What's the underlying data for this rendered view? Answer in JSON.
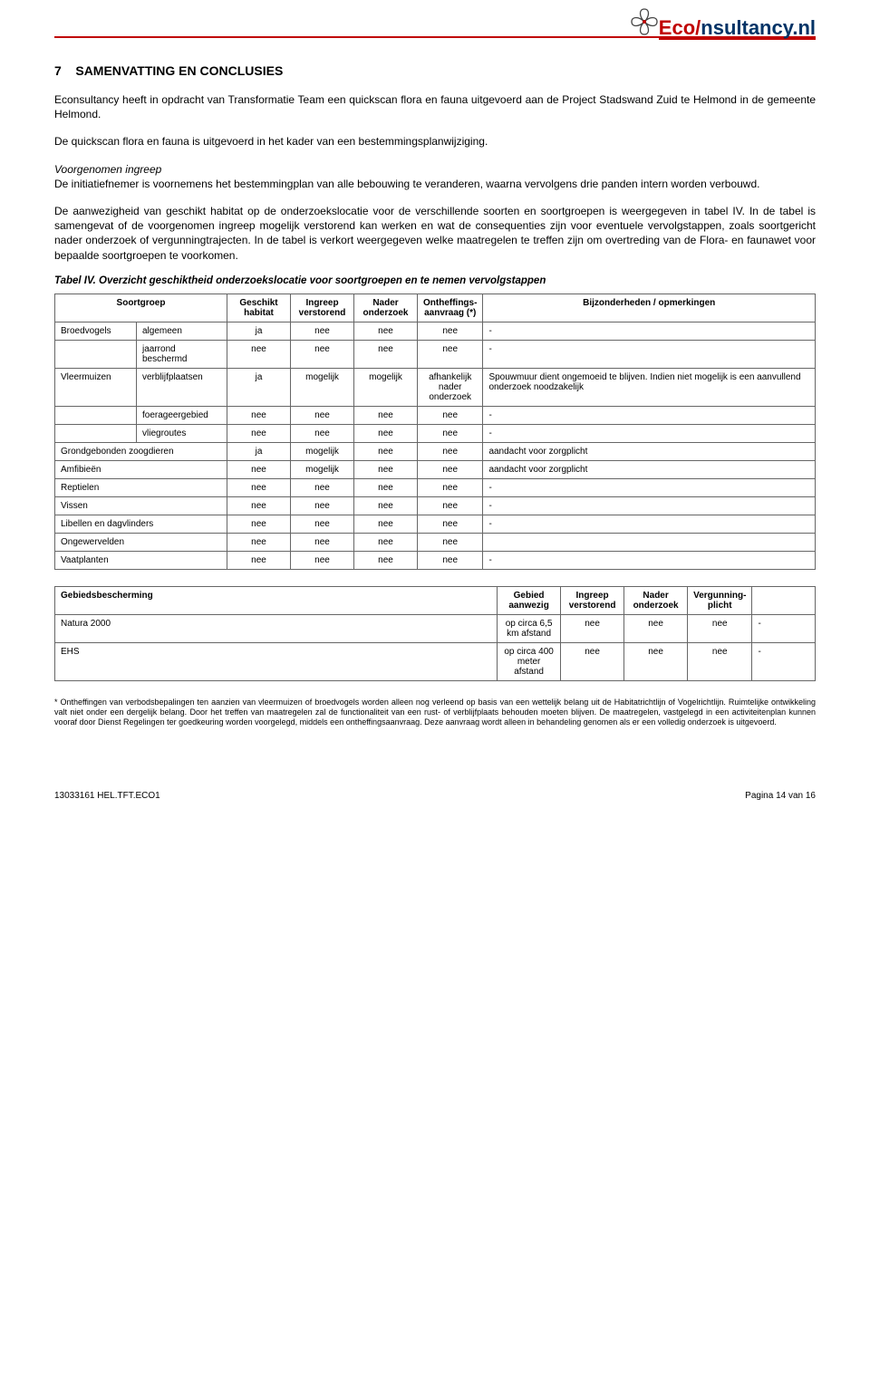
{
  "logo": {
    "prefix": "Ec",
    "mid": "o",
    "slash": "/",
    "suffix": "nsultancy",
    "ext": ".nl"
  },
  "heading": {
    "number": "7",
    "title": "SAMENVATTING EN CONCLUSIES"
  },
  "p1": "Econsultancy heeft in opdracht van Transformatie Team een quickscan flora en fauna uitgevoerd aan de Project Stadswand Zuid te Helmond in de gemeente Helmond.",
  "p2": "De quickscan flora en fauna is uitgevoerd in het kader van een bestemmingsplanwijziging.",
  "p3_heading": "Voorgenomen ingreep",
  "p3_body": "De initiatiefnemer is voornemens het bestemmingplan van alle bebouwing te veranderen, waarna vervolgens drie panden intern worden verbouwd.",
  "p4": "De aanwezigheid van geschikt habitat op de onderzoekslocatie voor de verschillende soorten en soortgroepen is weergegeven in tabel IV. In de tabel is samengevat of de voorgenomen ingreep mogelijk verstorend kan werken en wat de consequenties zijn voor eventuele vervolgstappen, zoals soortgericht nader onderzoek of vergunningtrajecten. In de tabel is verkort weergegeven welke maatregelen te treffen zijn om overtreding van de Flora- en faunawet voor bepaalde soortgroepen te voorkomen.",
  "table_caption": "Tabel IV. Overzicht geschiktheid onderzoekslocatie voor soortgroepen en te nemen vervolgstappen",
  "table1": {
    "headers": [
      "Soortgroep",
      "Geschikt habitat",
      "Ingreep verstorend",
      "Nader onderzoek",
      "Ontheffings-aanvraag (*)",
      "Bijzonderheden / opmerkingen"
    ],
    "rows": [
      {
        "g1": "Broedvogels",
        "g2": "algemeen",
        "c": [
          "ja",
          "nee",
          "nee",
          "nee"
        ],
        "r": "-"
      },
      {
        "g1": "",
        "g2": "jaarrond beschermd",
        "c": [
          "nee",
          "nee",
          "nee",
          "nee"
        ],
        "r": "-"
      },
      {
        "g1": "Vleermuizen",
        "g2": "verblijfplaatsen",
        "c": [
          "ja",
          "mogelijk",
          "mogelijk",
          "afhankelijk nader onderzoek"
        ],
        "r": "Spouwmuur dient ongemoeid te blijven. Indien niet mogelijk is een aanvullend onderzoek noodzakelijk"
      },
      {
        "g1": "",
        "g2": "foerageergebied",
        "c": [
          "nee",
          "nee",
          "nee",
          "nee"
        ],
        "r": "-"
      },
      {
        "g1": "",
        "g2": "vliegroutes",
        "c": [
          "nee",
          "nee",
          "nee",
          "nee"
        ],
        "r": "-"
      },
      {
        "g1": "Grondgebonden zoogdieren",
        "g2": "",
        "merged": true,
        "c": [
          "ja",
          "mogelijk",
          "nee",
          "nee"
        ],
        "r": "aandacht voor zorgplicht"
      },
      {
        "g1": "Amfibieën",
        "g2": "",
        "merged": true,
        "c": [
          "nee",
          "mogelijk",
          "nee",
          "nee"
        ],
        "r": "aandacht voor zorgplicht"
      },
      {
        "g1": "Reptielen",
        "g2": "",
        "merged": true,
        "c": [
          "nee",
          "nee",
          "nee",
          "nee"
        ],
        "r": "-"
      },
      {
        "g1": "Vissen",
        "g2": "",
        "merged": true,
        "c": [
          "nee",
          "nee",
          "nee",
          "nee"
        ],
        "r": "-"
      },
      {
        "g1": "Libellen en dagvlinders",
        "g2": "",
        "merged": true,
        "c": [
          "nee",
          "nee",
          "nee",
          "nee"
        ],
        "r": "-"
      },
      {
        "g1": "Ongewervelden",
        "g2": "",
        "merged": true,
        "c": [
          "nee",
          "nee",
          "nee",
          "nee"
        ],
        "r": ""
      },
      {
        "g1": "Vaatplanten",
        "g2": "",
        "merged": true,
        "c": [
          "nee",
          "nee",
          "nee",
          "nee"
        ],
        "r": "-"
      }
    ]
  },
  "table2": {
    "headers": [
      "Gebiedsbescherming",
      "Gebied aanwezig",
      "Ingreep verstorend",
      "Nader onderzoek",
      "Vergunning-plicht",
      ""
    ],
    "rows": [
      {
        "g": "Natura 2000",
        "c": [
          "op circa 6,5 km afstand",
          "nee",
          "nee",
          "nee"
        ],
        "r": "-"
      },
      {
        "g": "EHS",
        "c": [
          "op circa 400 meter afstand",
          "nee",
          "nee",
          "nee"
        ],
        "r": "-"
      }
    ]
  },
  "footnote": "* Ontheffingen van verbodsbepalingen ten aanzien van vleermuizen of broedvogels worden alleen nog verleend op basis van een wettelijk belang uit de Habitatrichtlijn of Vogelrichtlijn. Ruimtelijke ontwikkeling valt niet onder een dergelijk belang. Door het treffen van maatregelen zal de functionaliteit van een rust- of verblijfplaats behouden moeten blijven. De maatregelen, vastgelegd in een activiteitenplan kunnen vooraf door Dienst Regelingen ter goedkeuring worden voorgelegd, middels een ontheffingsaanvraag. Deze aanvraag wordt alleen in behandeling genomen als er een volledig onderzoek is uitgevoerd.",
  "footer": {
    "left": "13033161 HEL.TFT.ECO1",
    "right": "Pagina 14 van 16"
  },
  "style": {
    "accent_color": "#c00000",
    "logo_blue": "#003366",
    "border_color": "#666666",
    "body_font_size": 12,
    "table_font_size": 10,
    "footnote_font_size": 9
  }
}
